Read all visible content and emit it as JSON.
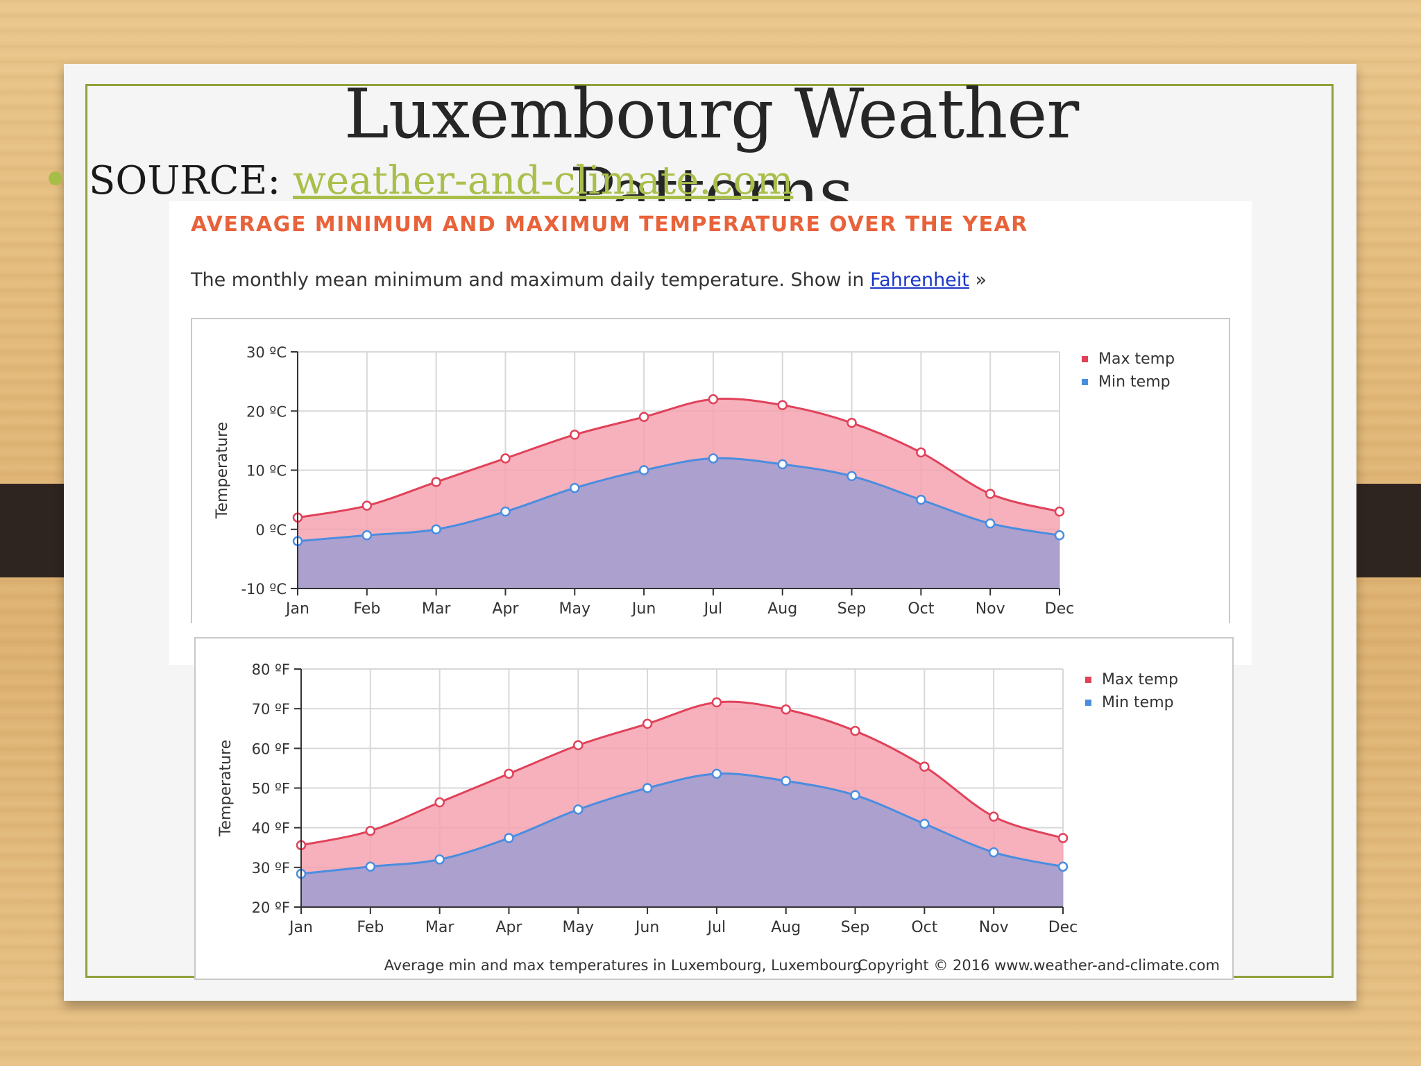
{
  "slide": {
    "title": "Luxembourg Weather Patterns",
    "source_label": "SOURCE: ",
    "source_link": "weather-and-climate.com"
  },
  "section": {
    "heading": "AVERAGE MINIMUM AND MAXIMUM TEMPERATURE OVER THE YEAR",
    "description": "The monthly mean minimum and maximum daily temperature. Show in ",
    "link": "Fahrenheit",
    "link_suffix": " »"
  },
  "colors": {
    "max_line": "#e0425a",
    "min_line": "#4a8de0",
    "max_fill": "#f5a3b0",
    "min_fill": "#a89fcf"
  },
  "chart_data": [
    {
      "type": "area",
      "ylabel": "Temperature",
      "xlabel": "",
      "categories": [
        "Jan",
        "Feb",
        "Mar",
        "Apr",
        "May",
        "Jun",
        "Jul",
        "Aug",
        "Sep",
        "Oct",
        "Nov",
        "Dec"
      ],
      "ylim": [
        -10,
        30
      ],
      "yticks": [
        30,
        20,
        10,
        0,
        -10
      ],
      "ytick_labels": [
        "30 ºC",
        "20 ºC",
        "10 ºC",
        "0 ºC",
        "-10 ºC"
      ],
      "grid": true,
      "legend": "top-right",
      "series": [
        {
          "name": "Max temp",
          "values": [
            2,
            4,
            8,
            12,
            16,
            19,
            22,
            21,
            18,
            13,
            6,
            3
          ]
        },
        {
          "name": "Min temp",
          "values": [
            -2,
            -1,
            0,
            3,
            7,
            10,
            12,
            11,
            9,
            5,
            1,
            -1
          ]
        }
      ]
    },
    {
      "type": "area",
      "ylabel": "Temperature",
      "xlabel": "",
      "categories": [
        "Jan",
        "Feb",
        "Mar",
        "Apr",
        "May",
        "Jun",
        "Jul",
        "Aug",
        "Sep",
        "Oct",
        "Nov",
        "Dec"
      ],
      "ylim": [
        20,
        80
      ],
      "yticks": [
        80,
        70,
        60,
        50,
        40,
        30,
        20
      ],
      "ytick_labels": [
        "80 ºF",
        "70 ºF",
        "60 ºF",
        "50 ºF",
        "40 ºF",
        "30 ºF",
        "20 ºF"
      ],
      "grid": true,
      "legend": "top-right",
      "caption": "Average min and max temperatures in Luxembourg, Luxembourg",
      "copyright": "Copyright © 2016 www.weather-and-climate.com",
      "series": [
        {
          "name": "Max temp",
          "values": [
            35.6,
            39.2,
            46.4,
            53.6,
            60.8,
            66.2,
            71.6,
            69.8,
            64.4,
            55.4,
            42.8,
            37.4
          ]
        },
        {
          "name": "Min temp",
          "values": [
            28.4,
            30.2,
            32,
            37.4,
            44.6,
            50,
            53.6,
            51.8,
            48.2,
            41,
            33.8,
            30.2
          ]
        }
      ]
    }
  ]
}
